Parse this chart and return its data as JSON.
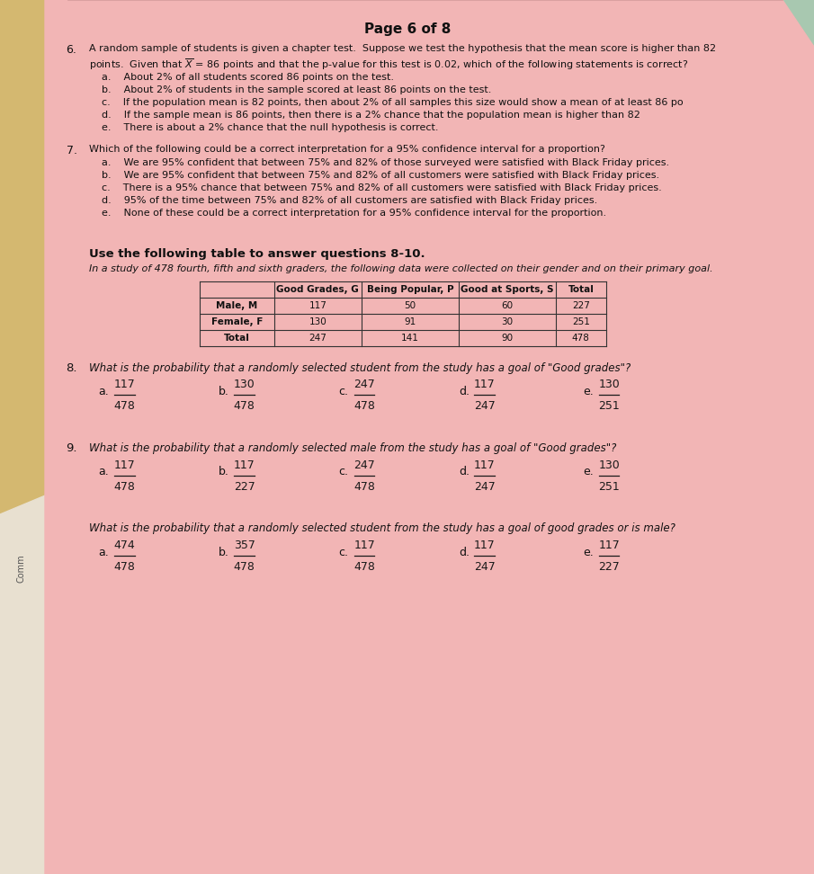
{
  "bg_color_paper": "#f2b8b8",
  "bg_outer": "#c8aa7a",
  "title": "Page 6 of 8",
  "q6_line1": "A random sample of students is given a chapter test.  Suppose we test the hypothesis that the mean score is higher than 82",
  "q6_line2": "points.  Given that $\\overline{X}$ = 86 points and that the p-value for this test is 0.02, which of the following statements is correct?",
  "q6_options": [
    "a.    About 2% of all students scored 86 points on the test.",
    "b.    About 2% of students in the sample scored at least 86 points on the test.",
    "c.    If the population mean is 82 points, then about 2% of all samples this size would show a mean of at least 86 po",
    "d.    If the sample mean is 86 points, then there is a 2% chance that the population mean is higher than 82",
    "e.    There is about a 2% chance that the null hypothesis is correct."
  ],
  "q7_text": "Which of the following could be a correct interpretation for a 95% confidence interval for a proportion?",
  "q7_options": [
    "a.    We are 95% confident that between 75% and 82% of those surveyed were satisfied with Black Friday prices.",
    "b.    We are 95% confident that between 75% and 82% of all customers were satisfied with Black Friday prices.",
    "c.    There is a 95% chance that between 75% and 82% of all customers were satisfied with Black Friday prices.",
    "d.    95% of the time between 75% and 82% of all customers are satisfied with Black Friday prices.",
    "e.    None of these could be a correct interpretation for a 95% confidence interval for the proportion."
  ],
  "table_intro": "Use the following table to answer questions 8-10.",
  "table_study": "In a study of 478 fourth, fifth and sixth graders, the following data were collected on their gender and on their primary goal.",
  "table_headers": [
    "",
    "Good Grades, G",
    "Being Popular, P",
    "Good at Sports, S",
    "Total"
  ],
  "table_rows": [
    [
      "Male, M",
      "117",
      "50",
      "60",
      "227"
    ],
    [
      "Female, F",
      "130",
      "91",
      "30",
      "251"
    ],
    [
      "Total",
      "247",
      "141",
      "90",
      "478"
    ]
  ],
  "q8_text": "What is the probability that a randomly selected student from the study has a goal of \"Good grades\"?",
  "q8_fracs": [
    [
      "117",
      "478"
    ],
    [
      "130",
      "478"
    ],
    [
      "247",
      "478"
    ],
    [
      "117",
      "247"
    ],
    [
      "130",
      "251"
    ]
  ],
  "q9_text": "What is the probability that a randomly selected male from the study has a goal of \"Good grades\"?",
  "q9_fracs": [
    [
      "117",
      "478"
    ],
    [
      "117",
      "227"
    ],
    [
      "247",
      "478"
    ],
    [
      "117",
      "247"
    ],
    [
      "130",
      "251"
    ]
  ],
  "q10_text": "What is the probability that a randomly selected student from the study has a goal of good grades or is male?",
  "q10_fracs": [
    [
      "474",
      "478"
    ],
    [
      "357",
      "478"
    ],
    [
      "117",
      "478"
    ],
    [
      "117",
      "247"
    ],
    [
      "117",
      "227"
    ]
  ],
  "frac_labels": [
    "a.",
    "b.",
    "c.",
    "d.",
    "e."
  ]
}
